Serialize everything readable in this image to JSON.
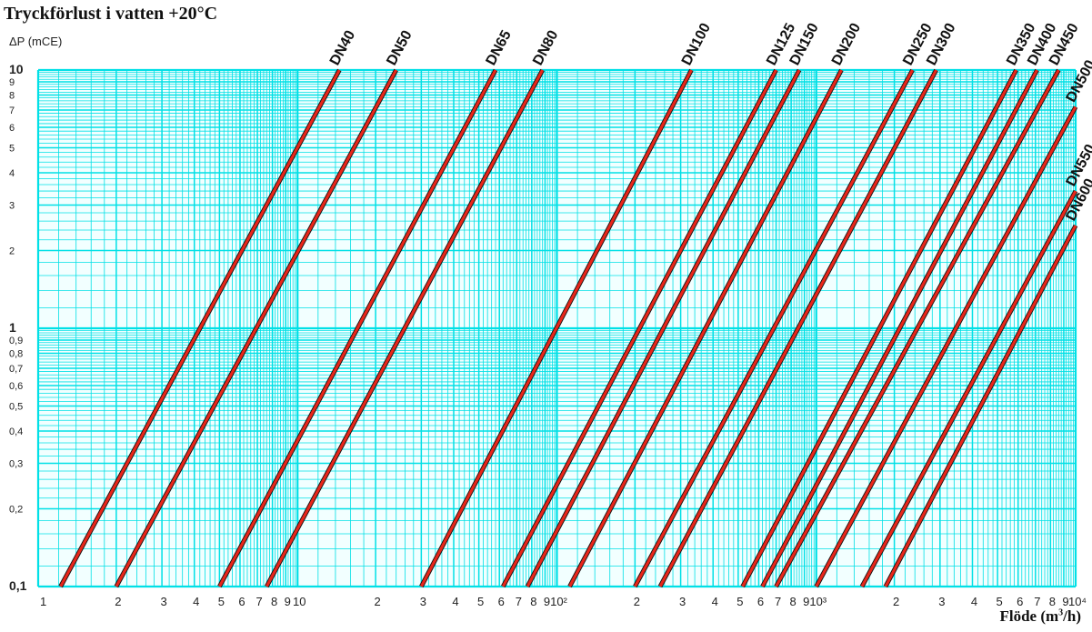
{
  "chart_data": {
    "type": "line",
    "title": "Tryckförlust i vatten +20°C",
    "ylabel": "ΔP (mCE)",
    "xlabel": {
      "main": "Flöde (m",
      "sup": "3",
      "end": "/h)"
    },
    "x_scale": "log",
    "y_scale": "log",
    "xlim": [
      1,
      10000
    ],
    "ylim": [
      0.1,
      10
    ],
    "grid": true,
    "colors": {
      "grid": "#00e0e6",
      "grid_background": "#f2ffff",
      "series_line": "#e8261a",
      "series_shadow": "#111111"
    },
    "x_tick_labels": [
      {
        "value": 1,
        "label": "1"
      },
      {
        "value": 2,
        "label": "2"
      },
      {
        "value": 3,
        "label": "3"
      },
      {
        "value": 4,
        "label": "4"
      },
      {
        "value": 5,
        "label": "5"
      },
      {
        "value": 6,
        "label": "6"
      },
      {
        "value": 7,
        "label": "7"
      },
      {
        "value": 8,
        "label": "8"
      },
      {
        "value": 9,
        "label": "9"
      },
      {
        "value": 10,
        "label": "10"
      },
      {
        "value": 20,
        "label": "2"
      },
      {
        "value": 30,
        "label": "3"
      },
      {
        "value": 40,
        "label": "4"
      },
      {
        "value": 50,
        "label": "5"
      },
      {
        "value": 60,
        "label": "6"
      },
      {
        "value": 70,
        "label": "7"
      },
      {
        "value": 80,
        "label": "8"
      },
      {
        "value": 90,
        "label": "9"
      },
      {
        "value": 100,
        "label": "10²"
      },
      {
        "value": 200,
        "label": "2"
      },
      {
        "value": 300,
        "label": "3"
      },
      {
        "value": 400,
        "label": "4"
      },
      {
        "value": 500,
        "label": "5"
      },
      {
        "value": 600,
        "label": "6"
      },
      {
        "value": 700,
        "label": "7"
      },
      {
        "value": 800,
        "label": "8"
      },
      {
        "value": 900,
        "label": "9"
      },
      {
        "value": 1000,
        "label": "10³"
      },
      {
        "value": 2000,
        "label": "2"
      },
      {
        "value": 3000,
        "label": "3"
      },
      {
        "value": 4000,
        "label": "4"
      },
      {
        "value": 5000,
        "label": "5"
      },
      {
        "value": 6000,
        "label": "6"
      },
      {
        "value": 7000,
        "label": "7"
      },
      {
        "value": 8000,
        "label": "8"
      },
      {
        "value": 9000,
        "label": "9"
      },
      {
        "value": 10000,
        "label": "10⁴"
      }
    ],
    "y_tick_labels": [
      {
        "value": 0.1,
        "label": "0,1"
      },
      {
        "value": 0.2,
        "label": "0,2"
      },
      {
        "value": 0.3,
        "label": "0,3"
      },
      {
        "value": 0.4,
        "label": "0,4"
      },
      {
        "value": 0.5,
        "label": "0,5"
      },
      {
        "value": 0.6,
        "label": "0,6"
      },
      {
        "value": 0.7,
        "label": "0,7"
      },
      {
        "value": 0.8,
        "label": "0,8"
      },
      {
        "value": 0.9,
        "label": "0,9"
      },
      {
        "value": 1,
        "label": "1"
      },
      {
        "value": 2,
        "label": "2"
      },
      {
        "value": 3,
        "label": "3"
      },
      {
        "value": 4,
        "label": "4"
      },
      {
        "value": 5,
        "label": "5"
      },
      {
        "value": 6,
        "label": "6"
      },
      {
        "value": 7,
        "label": "7"
      },
      {
        "value": 8,
        "label": "8"
      },
      {
        "value": 9,
        "label": "9"
      },
      {
        "value": 10,
        "label": "10"
      }
    ],
    "series": [
      {
        "name": "DN40",
        "x": [
          1.22,
          14.5
        ],
        "y": [
          0.1,
          10
        ]
      },
      {
        "name": "DN50",
        "x": [
          2.0,
          24.0
        ],
        "y": [
          0.1,
          10
        ]
      },
      {
        "name": "DN65",
        "x": [
          5.0,
          58.0
        ],
        "y": [
          0.1,
          10
        ]
      },
      {
        "name": "DN80",
        "x": [
          7.6,
          88.0
        ],
        "y": [
          0.1,
          10
        ]
      },
      {
        "name": "DN100",
        "x": [
          30.0,
          330.0
        ],
        "y": [
          0.1,
          10
        ]
      },
      {
        "name": "DN125",
        "x": [
          62.0,
          700.0
        ],
        "y": [
          0.1,
          10
        ]
      },
      {
        "name": "DN150",
        "x": [
          77.0,
          860.0
        ],
        "y": [
          0.1,
          10
        ]
      },
      {
        "name": "DN200",
        "x": [
          112.0,
          1250.0
        ],
        "y": [
          0.1,
          10
        ]
      },
      {
        "name": "DN250",
        "x": [
          200.0,
          2350.0
        ],
        "y": [
          0.1,
          10
        ]
      },
      {
        "name": "DN300",
        "x": [
          250.0,
          2900.0
        ],
        "y": [
          0.1,
          10
        ]
      },
      {
        "name": "DN350",
        "x": [
          520.0,
          5900.0
        ],
        "y": [
          0.1,
          10
        ]
      },
      {
        "name": "DN400",
        "x": [
          620.0,
          7100.0
        ],
        "y": [
          0.1,
          10
        ]
      },
      {
        "name": "DN450",
        "x": [
          700.0,
          8600.0
        ],
        "y": [
          0.1,
          10
        ]
      },
      {
        "name": "DN500",
        "x": [
          1000.0,
          10000.0
        ],
        "y": [
          0.1,
          7.2
        ]
      },
      {
        "name": "DN550",
        "x": [
          1500.0,
          10000.0
        ],
        "y": [
          0.1,
          3.4
        ]
      },
      {
        "name": "DN600",
        "x": [
          1850.0,
          10000.0
        ],
        "y": [
          0.1,
          2.5
        ]
      }
    ]
  }
}
